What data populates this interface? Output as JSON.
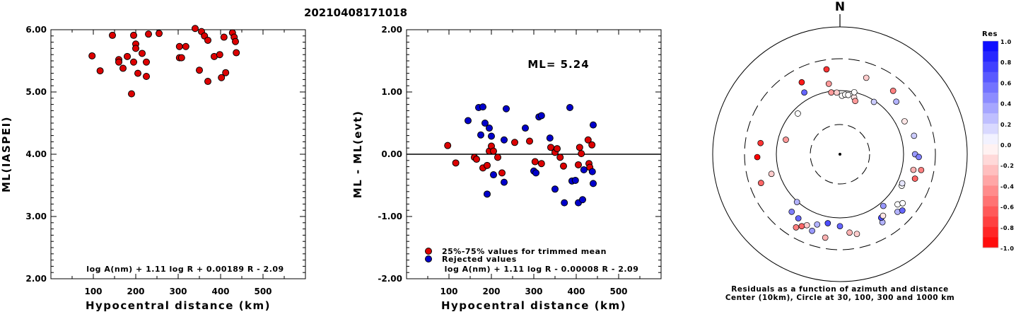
{
  "title": "20210408171018",
  "chart_data": [
    {
      "type": "scatter",
      "panel": "magnitude",
      "xlabel": "Hypocentral distance (km)",
      "ylabel": "ML(IASPEI)",
      "xlim": [
        0,
        600
      ],
      "ylim": [
        2.0,
        6.0
      ],
      "xticks": [
        "100",
        "200",
        "300",
        "400",
        "500"
      ],
      "yticks": [
        "2.00",
        "3.00",
        "4.00",
        "5.00",
        "6.00"
      ],
      "formula": "log A(nm) + 1.11 log R + 0.00189 R - 2.09",
      "series": [
        {
          "color": "#dd0000",
          "points": [
            [
              97,
              5.58
            ],
            [
              116,
              5.34
            ],
            [
              145,
              5.91
            ],
            [
              160,
              5.52
            ],
            [
              160,
              5.48
            ],
            [
              170,
              5.38
            ],
            [
              180,
              5.57
            ],
            [
              190,
              4.97
            ],
            [
              195,
              5.91
            ],
            [
              195,
              5.48
            ],
            [
              200,
              5.77
            ],
            [
              200,
              5.7
            ],
            [
              205,
              5.3
            ],
            [
              215,
              5.62
            ],
            [
              225,
              5.25
            ],
            [
              225,
              5.48
            ],
            [
              230,
              5.93
            ],
            [
              255,
              5.94
            ],
            [
              303,
              5.73
            ],
            [
              303,
              5.55
            ],
            [
              308,
              5.55
            ],
            [
              318,
              5.73
            ],
            [
              340,
              6.02
            ],
            [
              350,
              5.35
            ],
            [
              355,
              5.97
            ],
            [
              362,
              5.9
            ],
            [
              370,
              5.83
            ],
            [
              370,
              5.17
            ],
            [
              385,
              5.57
            ],
            [
              398,
              5.6
            ],
            [
              402,
              5.23
            ],
            [
              408,
              5.88
            ],
            [
              412,
              5.31
            ],
            [
              428,
              5.95
            ],
            [
              432,
              5.88
            ],
            [
              435,
              5.81
            ],
            [
              437,
              5.63
            ]
          ]
        }
      ]
    },
    {
      "type": "scatter",
      "panel": "residuals",
      "xlabel": "Hypocentral distance (km)",
      "ylabel": "ML - ML(evt)",
      "xlim": [
        0,
        600
      ],
      "ylim": [
        -2.0,
        2.0
      ],
      "xticks": [
        "100",
        "200",
        "300",
        "400",
        "500"
      ],
      "yticks": [
        "-2.00",
        "-1.00",
        "0.00",
        "1.00",
        "2.00"
      ],
      "annotation": "ML= 5.24",
      "formula": "log A(nm) + 1.11 log R - 0.00008 R - 2.09",
      "series": [
        {
          "name": "25%-75% values for trimmed mean",
          "color": "#dd0000",
          "points": [
            [
              97,
              0.14
            ],
            [
              116,
              -0.14
            ],
            [
              160,
              -0.05
            ],
            [
              165,
              -0.08
            ],
            [
              180,
              -0.22
            ],
            [
              190,
              -0.18
            ],
            [
              195,
              0.05
            ],
            [
              200,
              0.13
            ],
            [
              205,
              0.05
            ],
            [
              215,
              -0.05
            ],
            [
              225,
              -0.3
            ],
            [
              255,
              0.19
            ],
            [
              290,
              0.21
            ],
            [
              303,
              -0.12
            ],
            [
              318,
              -0.15
            ],
            [
              340,
              0.11
            ],
            [
              350,
              0.03
            ],
            [
              355,
              0.09
            ],
            [
              362,
              -0.05
            ],
            [
              370,
              -0.19
            ],
            [
              405,
              -0.17
            ],
            [
              408,
              0.11
            ],
            [
              412,
              0.01
            ],
            [
              428,
              0.23
            ],
            [
              430,
              -0.15
            ],
            [
              432,
              -0.21
            ],
            [
              437,
              0.15
            ]
          ]
        },
        {
          "name": "Rejected values",
          "color": "#0000cc",
          "points": [
            [
              145,
              0.54
            ],
            [
              170,
              0.75
            ],
            [
              175,
              0.31
            ],
            [
              180,
              0.76
            ],
            [
              185,
              0.5
            ],
            [
              190,
              -0.64
            ],
            [
              195,
              0.42
            ],
            [
              200,
              0.29
            ],
            [
              205,
              -0.33
            ],
            [
              230,
              -0.45
            ],
            [
              230,
              0.23
            ],
            [
              235,
              0.73
            ],
            [
              280,
              0.42
            ],
            [
              300,
              -0.27
            ],
            [
              305,
              -0.3
            ],
            [
              312,
              0.6
            ],
            [
              318,
              0.62
            ],
            [
              338,
              0.26
            ],
            [
              350,
              -0.56
            ],
            [
              372,
              -0.78
            ],
            [
              385,
              0.75
            ],
            [
              390,
              -0.43
            ],
            [
              398,
              -0.42
            ],
            [
              405,
              -0.78
            ],
            [
              415,
              -0.73
            ],
            [
              418,
              -0.25
            ],
            [
              438,
              -0.28
            ],
            [
              440,
              0.47
            ],
            [
              440,
              -0.47
            ]
          ]
        }
      ]
    },
    {
      "type": "scatter",
      "panel": "azimuth",
      "north_label": "N",
      "caption_line1": "Residuals as a function of azimuth and distance",
      "caption_line2": "Center (10km), Circle at 30, 100, 300 and 1000 km",
      "colorbar_title": "Res",
      "colorbar_ticks": [
        "1.0",
        "0.8",
        "0.6",
        "0.4",
        "0.2",
        "0.0",
        "-0.2",
        "-0.4",
        "-0.6",
        "-0.8",
        "-1.0"
      ],
      "points_az_dist_res": [
        [
          -46,
          460,
          0.0
        ],
        [
          -30,
          560,
          0.6
        ],
        [
          -28,
          640,
          -0.9
        ],
        [
          -9,
          560,
          -0.4
        ],
        [
          -9,
          675,
          -0.8
        ],
        [
          -8,
          490,
          -0.4
        ],
        [
          -3,
          485,
          -0.2
        ],
        [
          2,
          460,
          0.0
        ],
        [
          5,
          470,
          0.0
        ],
        [
          8,
          470,
          0.0
        ],
        [
          14,
          460,
          -0.1
        ],
        [
          16,
          435,
          -0.4
        ],
        [
          13,
          500,
          0.0
        ],
        [
          19,
          635,
          -0.2
        ],
        [
          33,
          490,
          0.2
        ],
        [
          40,
          650,
          -0.5
        ],
        [
          47,
          605,
          0.3
        ],
        [
          -75,
          440,
          -0.4
        ],
        [
          -82,
          630,
          -0.8
        ],
        [
          -92,
          650,
          -1.0
        ],
        [
          -106,
          560,
          -0.2
        ],
        [
          -110,
          660,
          -0.6
        ],
        [
          -138,
          505,
          0.3
        ],
        [
          -140,
          590,
          0.5
        ],
        [
          -147,
          600,
          0.6
        ],
        [
          -152,
          640,
          -0.6
        ],
        [
          -149,
          670,
          -0.5
        ],
        [
          -160,
          640,
          0.4
        ],
        [
          -162,
          580,
          0.3
        ],
        [
          -155,
          615,
          -0.2
        ],
        [
          -170,
          550,
          0.7
        ],
        [
          -180,
          565,
          0.6
        ],
        [
          -187,
          620,
          -0.3
        ],
        [
          -192,
          640,
          -0.2
        ],
        [
          -170,
          665,
          -0.3
        ],
        [
          -212,
          630,
          0.3
        ],
        [
          -213,
          595,
          0.7
        ],
        [
          -220,
          530,
          0.4
        ],
        [
          -215,
          590,
          -0.1
        ],
        [
          -225,
          640,
          0.3
        ],
        [
          -228,
          660,
          0.6
        ],
        [
          -229,
          600,
          0.0
        ],
        [
          -232,
          625,
          0.0
        ],
        [
          -243,
          545,
          0.0
        ],
        [
          -245,
          540,
          0.1
        ],
        [
          -252,
          620,
          -0.6
        ],
        [
          -258,
          590,
          -0.3
        ],
        [
          -259,
          650,
          -0.5
        ],
        [
          -270,
          590,
          0.4
        ],
        [
          -268,
          620,
          0.5
        ],
        [
          -284,
          600,
          0.2
        ],
        [
          -297,
          570,
          -0.1
        ]
      ]
    }
  ],
  "colors": {
    "rejected": "#0000cc",
    "trimmed": "#dd0000",
    "axis": "#000000"
  }
}
